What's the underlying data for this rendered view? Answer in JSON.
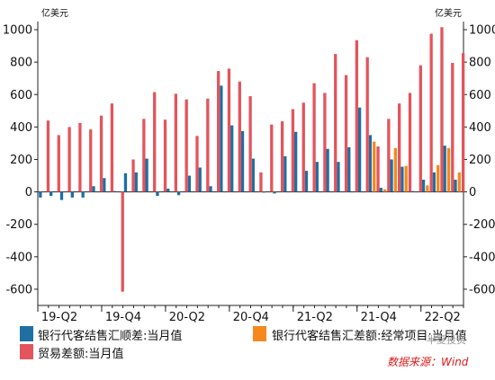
{
  "chart_data": {
    "type": "bar",
    "unit_left": "亿美元",
    "unit_right": "亿美元",
    "ylim": [
      -700,
      1050
    ],
    "yticks": [
      -600,
      -400,
      -200,
      0,
      200,
      400,
      600,
      800,
      1000
    ],
    "x_tick_labels": [
      "19-Q2",
      "19-Q4",
      "20-Q2",
      "20-Q4",
      "21-Q2",
      "21-Q4",
      "22-Q2"
    ],
    "x_tick_month_index": [
      0,
      6,
      12,
      18,
      24,
      30,
      36
    ],
    "grid": false,
    "legend_position": "bottom",
    "colors": {
      "settlement": "#1f6fa3",
      "current_account": "#f5891e",
      "trade": "#e4545c"
    },
    "series": [
      {
        "name": "银行代客结售汇顺差:当月值",
        "key": "settlement",
        "values": [
          -35,
          -25,
          -50,
          -35,
          -35,
          35,
          85,
          5,
          115,
          120,
          205,
          -25,
          20,
          -20,
          100,
          150,
          35,
          655,
          410,
          375,
          205,
          0,
          -10,
          220,
          370,
          130,
          185,
          265,
          185,
          275,
          520,
          350,
          25,
          200,
          155,
          5,
          75,
          120,
          285,
          75
        ]
      },
      {
        "name": "银行代客结售汇差额:经常项目:当月值",
        "key": "current_account",
        "values": [
          null,
          null,
          null,
          null,
          null,
          null,
          null,
          null,
          null,
          null,
          null,
          null,
          null,
          null,
          null,
          null,
          null,
          null,
          null,
          null,
          null,
          null,
          null,
          null,
          null,
          null,
          null,
          null,
          null,
          null,
          null,
          310,
          15,
          270,
          160,
          null,
          40,
          165,
          270,
          120
        ]
      },
      {
        "name": "贸易差额:当月值",
        "key": "trade",
        "values": [
          440,
          350,
          400,
          425,
          385,
          470,
          545,
          -615,
          200,
          450,
          615,
          445,
          605,
          570,
          345,
          575,
          745,
          760,
          680,
          590,
          120,
          415,
          435,
          510,
          550,
          670,
          610,
          850,
          720,
          935,
          830,
          280,
          450,
          545,
          610,
          780,
          975,
          1015,
          795,
          855
        ]
      }
    ]
  },
  "footer": {
    "watermark": "半夏投资",
    "source": "数据来源：Wind"
  }
}
